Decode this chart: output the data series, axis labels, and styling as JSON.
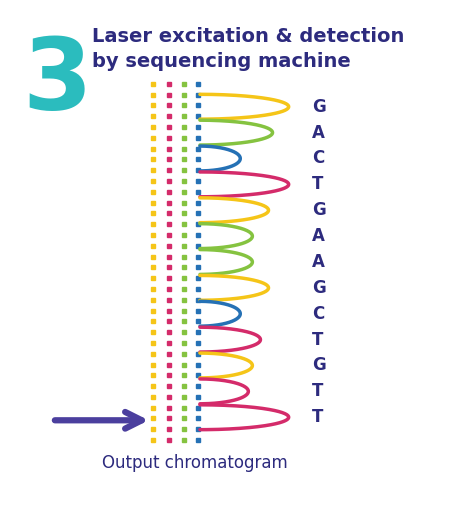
{
  "title_number": "3",
  "title_number_color": "#2bbcbe",
  "title_text_line1": "Laser excitation & detection",
  "title_text_line2": "by sequencing machine",
  "title_text_color": "#2d2b7e",
  "bg_color": "#ffffff",
  "sequence": [
    "G",
    "A",
    "C",
    "T",
    "G",
    "A",
    "A",
    "G",
    "C",
    "T",
    "G",
    "T",
    "T"
  ],
  "sequence_color": "#2d2b7e",
  "wave_colors_by_base": {
    "G": "#f5c518",
    "A": "#85c340",
    "C": "#2571b5",
    "T": "#d42b6a"
  },
  "dot_colors": [
    "#f5c518",
    "#d42b6a",
    "#85c340",
    "#2571b5"
  ],
  "arrow_color": "#4b3f9e",
  "output_label": "Output chromatogram",
  "output_label_color": "#2d2b7e",
  "amplitudes": [
    0.22,
    0.18,
    0.1,
    0.22,
    0.17,
    0.13,
    0.13,
    0.17,
    0.1,
    0.15,
    0.13,
    0.12,
    0.22
  ]
}
